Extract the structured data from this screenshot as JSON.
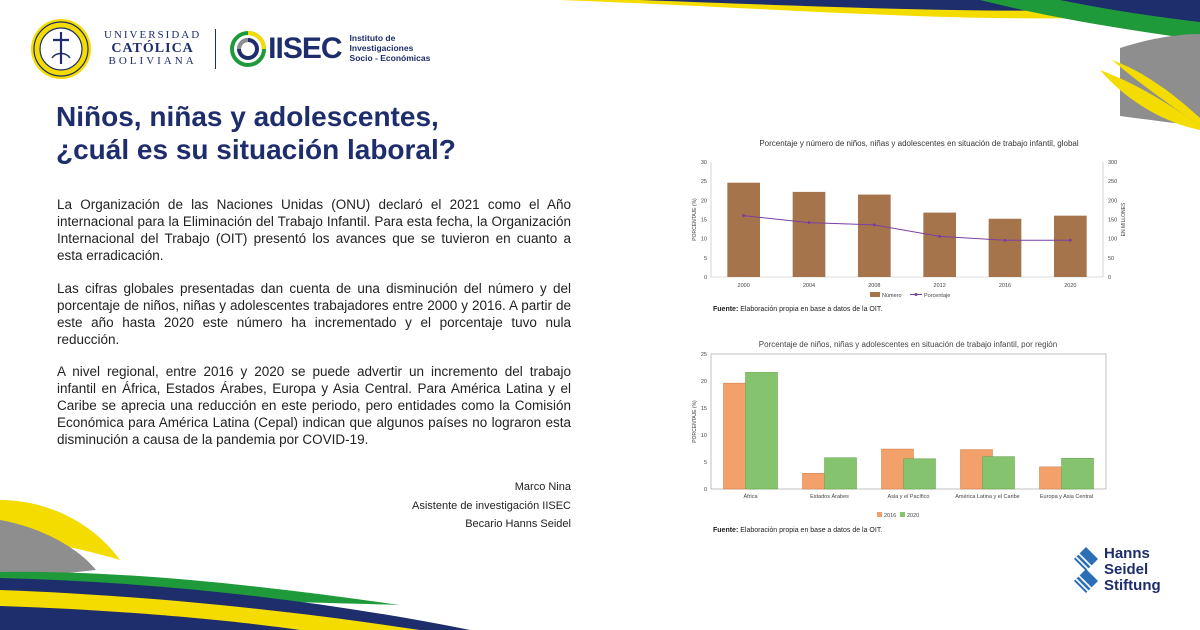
{
  "header": {
    "university_line1": "UNIVERSIDAD",
    "university_line2": "CATÓLICA",
    "university_line3": "BOLIVIANA",
    "institute_name": "IISEC",
    "institute_sub1": "Instituto de",
    "institute_sub2": "Investigaciones",
    "institute_sub3": "Socio - Económicas"
  },
  "title": {
    "line1": "Niños, niñas y adolescentes,",
    "line2": "¿cuál es su situación laboral?"
  },
  "paragraphs": [
    "La Organización de las Naciones Unidas (ONU) declaró el 2021 como el Año internacional para la Eliminación del Trabajo Infantil. Para esta fecha, la Organización Internacional del Trabajo (OIT) presentó los avances que se tuvieron en cuanto a esta erradicación.",
    "Las cifras globales presentadas dan cuenta de una disminución del número y del porcentaje de niños, niñas y adolescentes trabajadores entre 2000 y 2016. A partir de este año hasta 2020 este número ha incrementado y el porcentaje tuvo nula reducción.",
    "A nivel regional, entre 2016 y 2020 se puede advertir un incremento del trabajo infantil en África, Estados Árabes, Europa y Asia Central. Para América Latina y el Caribe se aprecia una reducción en este periodo, pero entidades como la Comisión Económica para América Latina (Cepal) indican que algunos países no lograron esta disminución a causa de la pandemia por COVID-19."
  ],
  "signature": {
    "name": "Marco Nina",
    "role": "Asistente de investigación IISEC",
    "grant": "Becario Hanns Seidel"
  },
  "sources": {
    "label": "Fuente:",
    "text": "Elaboración propia en base a datos de la OIT."
  },
  "footer_logo": {
    "line1": "Hanns",
    "line2": "Seidel",
    "line3": "Stiftung"
  },
  "colors": {
    "navy": "#1e2d6b",
    "yellow": "#f5dc00",
    "green": "#1f9a3a",
    "gray": "#8e8e8e",
    "bar_brown": "#a6744b",
    "line_purple": "#7b3fa0",
    "bar_2016": "#f4a06a",
    "bar_2020": "#86c36e"
  },
  "chart_data": [
    {
      "type": "bar",
      "title": "Porcentaje y número de niños, niñas y adolescentes en situación de trabajo infantil, global",
      "categories": [
        "2000",
        "2004",
        "2008",
        "2012",
        "2016",
        "2020"
      ],
      "series": [
        {
          "name": "Número",
          "type": "bar",
          "axis": "right",
          "values": [
            246,
            222,
            215,
            168,
            152,
            160
          ]
        },
        {
          "name": "Porcentaje",
          "type": "line",
          "axis": "left",
          "values": [
            16,
            14.2,
            13.6,
            10.6,
            9.6,
            9.6
          ]
        }
      ],
      "ylabel": "PORCENTAJE (%)",
      "y2label": "EN MILLONES",
      "ylim": [
        0,
        30
      ],
      "y2lim": [
        0,
        300
      ],
      "yticks": [
        0,
        5,
        10,
        15,
        20,
        25,
        30
      ],
      "y2ticks": [
        0,
        50,
        100,
        150,
        200,
        250,
        300
      ],
      "legend": "bottom-center"
    },
    {
      "type": "bar",
      "title": "Porcentaje de niños, niñas y adolescentes en situación de trabajo infantil, por región",
      "categories": [
        "África",
        "Estados Árabes",
        "Asia y el Pacífico",
        "América Latina y el Caribe",
        "Europa y Asia Central"
      ],
      "series": [
        {
          "name": "2016",
          "values": [
            19.6,
            2.9,
            7.4,
            7.3,
            4.1
          ]
        },
        {
          "name": "2020",
          "values": [
            21.6,
            5.8,
            5.6,
            6,
            5.7
          ]
        }
      ],
      "ylabel": "PORCENTAJE (%)",
      "ylim": [
        0,
        25
      ],
      "yticks": [
        0,
        5,
        10,
        15,
        20,
        25
      ],
      "legend": "bottom-center"
    }
  ]
}
